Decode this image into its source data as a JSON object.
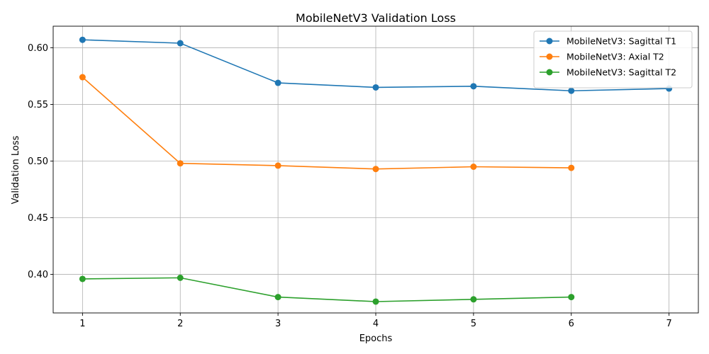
{
  "chart_data": {
    "type": "line",
    "title": "MobileNetV3 Validation Loss",
    "xlabel": "Epochs",
    "ylabel": "Validation Loss",
    "xlim": [
      0.7,
      7.3
    ],
    "ylim": [
      0.366,
      0.619
    ],
    "xticks": [
      1,
      2,
      3,
      4,
      5,
      6,
      7
    ],
    "yticks": [
      0.4,
      0.45,
      0.5,
      0.55,
      0.6
    ],
    "ytick_labels": [
      "0.40",
      "0.45",
      "0.50",
      "0.55",
      "0.60"
    ],
    "grid": true,
    "legend_position": "top-right",
    "series": [
      {
        "name": "MobileNetV3: Sagittal T1",
        "color": "#1f77b4",
        "x": [
          1,
          2,
          3,
          4,
          5,
          6,
          7
        ],
        "y": [
          0.607,
          0.604,
          0.569,
          0.565,
          0.566,
          0.562,
          0.564
        ]
      },
      {
        "name": "MobileNetV3: Axial T2",
        "color": "#ff7f0e",
        "x": [
          1,
          2,
          3,
          4,
          5,
          6
        ],
        "y": [
          0.574,
          0.498,
          0.496,
          0.493,
          0.495,
          0.494
        ]
      },
      {
        "name": "MobileNetV3: Sagittal T2",
        "color": "#2ca02c",
        "x": [
          1,
          2,
          3,
          4,
          5,
          6
        ],
        "y": [
          0.396,
          0.397,
          0.38,
          0.376,
          0.378,
          0.38
        ]
      }
    ]
  }
}
